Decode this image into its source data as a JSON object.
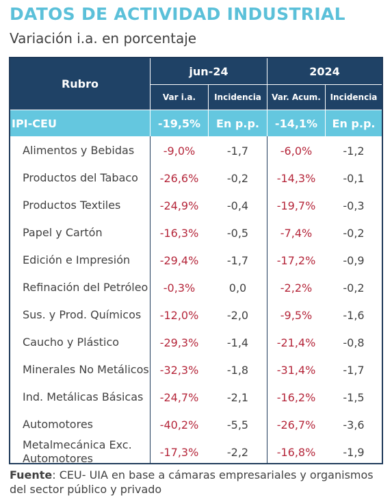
{
  "header": {
    "title": "DATOS DE ACTIVIDAD INDUSTRIAL",
    "subtitle": "Variación i.a. en porcentaje"
  },
  "table": {
    "rubro_label": "Rubro",
    "group1": "jun-24",
    "group2": "2024",
    "col_var_ia": "Var i.a.",
    "col_incidencia_1": "Incidencia",
    "col_var_acum": "Var. Acum.",
    "col_incidencia_2": "Incidencia",
    "ipi": {
      "label": "IPI-CEU",
      "var_ia": "-19,5%",
      "inc1": "En p.p.",
      "var_acum": "-14,1%",
      "inc2": "En p.p."
    },
    "rows": [
      {
        "rubro": "Alimentos y Bebidas",
        "var_ia": "-9,0%",
        "inc1": "-1,7",
        "var_acum": "-6,0%",
        "inc2": "-1,2"
      },
      {
        "rubro": "Productos del Tabaco",
        "var_ia": "-26,6%",
        "inc1": "-0,2",
        "var_acum": "-14,3%",
        "inc2": "-0,1"
      },
      {
        "rubro": "Productos Textiles",
        "var_ia": "-24,9%",
        "inc1": "-0,4",
        "var_acum": "-19,7%",
        "inc2": "-0,3"
      },
      {
        "rubro": "Papel y Cartón",
        "var_ia": "-16,3%",
        "inc1": "-0,5",
        "var_acum": "-7,4%",
        "inc2": "-0,2"
      },
      {
        "rubro": "Edición e Impresión",
        "var_ia": "-29,4%",
        "inc1": "-1,7",
        "var_acum": "-17,2%",
        "inc2": "-0,9"
      },
      {
        "rubro": "Refinación del Petróleo",
        "var_ia": "-0,3%",
        "inc1": "0,0",
        "var_acum": "-2,2%",
        "inc2": "-0,2"
      },
      {
        "rubro": "Sus. y Prod. Químicos",
        "var_ia": "-12,0%",
        "inc1": "-2,0",
        "var_acum": "-9,5%",
        "inc2": "-1,6"
      },
      {
        "rubro": "Caucho y Plástico",
        "var_ia": "-29,3%",
        "inc1": "-1,4",
        "var_acum": "-21,4%",
        "inc2": "-0,8"
      },
      {
        "rubro": "Minerales No Metálicos",
        "var_ia": "-32,3%",
        "inc1": "-1,8",
        "var_acum": "-31,4%",
        "inc2": "-1,7"
      },
      {
        "rubro": "Ind. Metálicas Básicas",
        "var_ia": "-24,7%",
        "inc1": "-2,1",
        "var_acum": "-16,2%",
        "inc2": "-1,5"
      },
      {
        "rubro": "Automotores",
        "var_ia": "-40,2%",
        "inc1": "-5,5",
        "var_acum": "-26,7%",
        "inc2": "-3,6"
      },
      {
        "rubro": "Metalmecánica Exc. Automotores",
        "var_ia": "-17,3%",
        "inc1": "-2,2",
        "var_acum": "-16,8%",
        "inc2": "-1,9"
      }
    ]
  },
  "source": {
    "label": "Fuente",
    "text": ": CEU- UIA en base a cámaras empresariales y organismos del sector público y privado"
  },
  "colors": {
    "title": "#5bc0d9",
    "header_bg": "#1f4266",
    "ipi_bg": "#64c7df",
    "negative": "#b5263a"
  }
}
